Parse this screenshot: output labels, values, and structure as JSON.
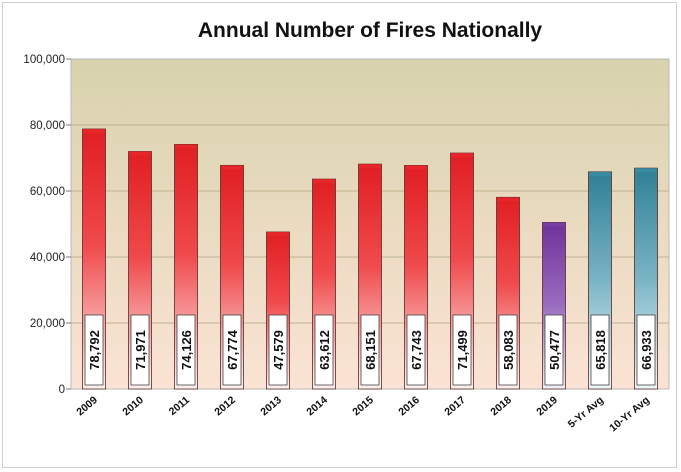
{
  "chart_data": {
    "type": "bar",
    "title": "Annual Number of Fires Nationally",
    "xlabel": "",
    "ylabel": "",
    "ylim": [
      0,
      100000
    ],
    "yticks": [
      0,
      20000,
      40000,
      60000,
      80000,
      100000
    ],
    "ytick_labels": [
      "0",
      "20,000",
      "40,000",
      "60,000",
      "80,000",
      "100,000"
    ],
    "categories": [
      "2009",
      "2010",
      "2011",
      "2012",
      "2013",
      "2014",
      "2015",
      "2016",
      "2017",
      "2018",
      "2019",
      "5-Yr Avg",
      "10-Yr Avg"
    ],
    "values": [
      78792,
      71971,
      74126,
      67774,
      47579,
      63612,
      68151,
      67743,
      71499,
      58083,
      50477,
      65818,
      66933
    ],
    "data_labels": [
      "78,792",
      "71,971",
      "74,126",
      "67,774",
      "47,579",
      "63,612",
      "68,151",
      "67,743",
      "71,499",
      "58,083",
      "50,477",
      "65,818",
      "66,933"
    ],
    "bar_styles": [
      "red",
      "red",
      "red",
      "red",
      "red",
      "red",
      "red",
      "red",
      "red",
      "red",
      "purple",
      "teal",
      "teal"
    ],
    "grid": true,
    "legend": "none",
    "colors": {
      "red": "#e8282a",
      "purple": "#7b3fa8",
      "teal": "#3a8ea3",
      "plot_bg_top": "#d8d2ad",
      "plot_bg_bottom": "#fbe3d4"
    }
  }
}
